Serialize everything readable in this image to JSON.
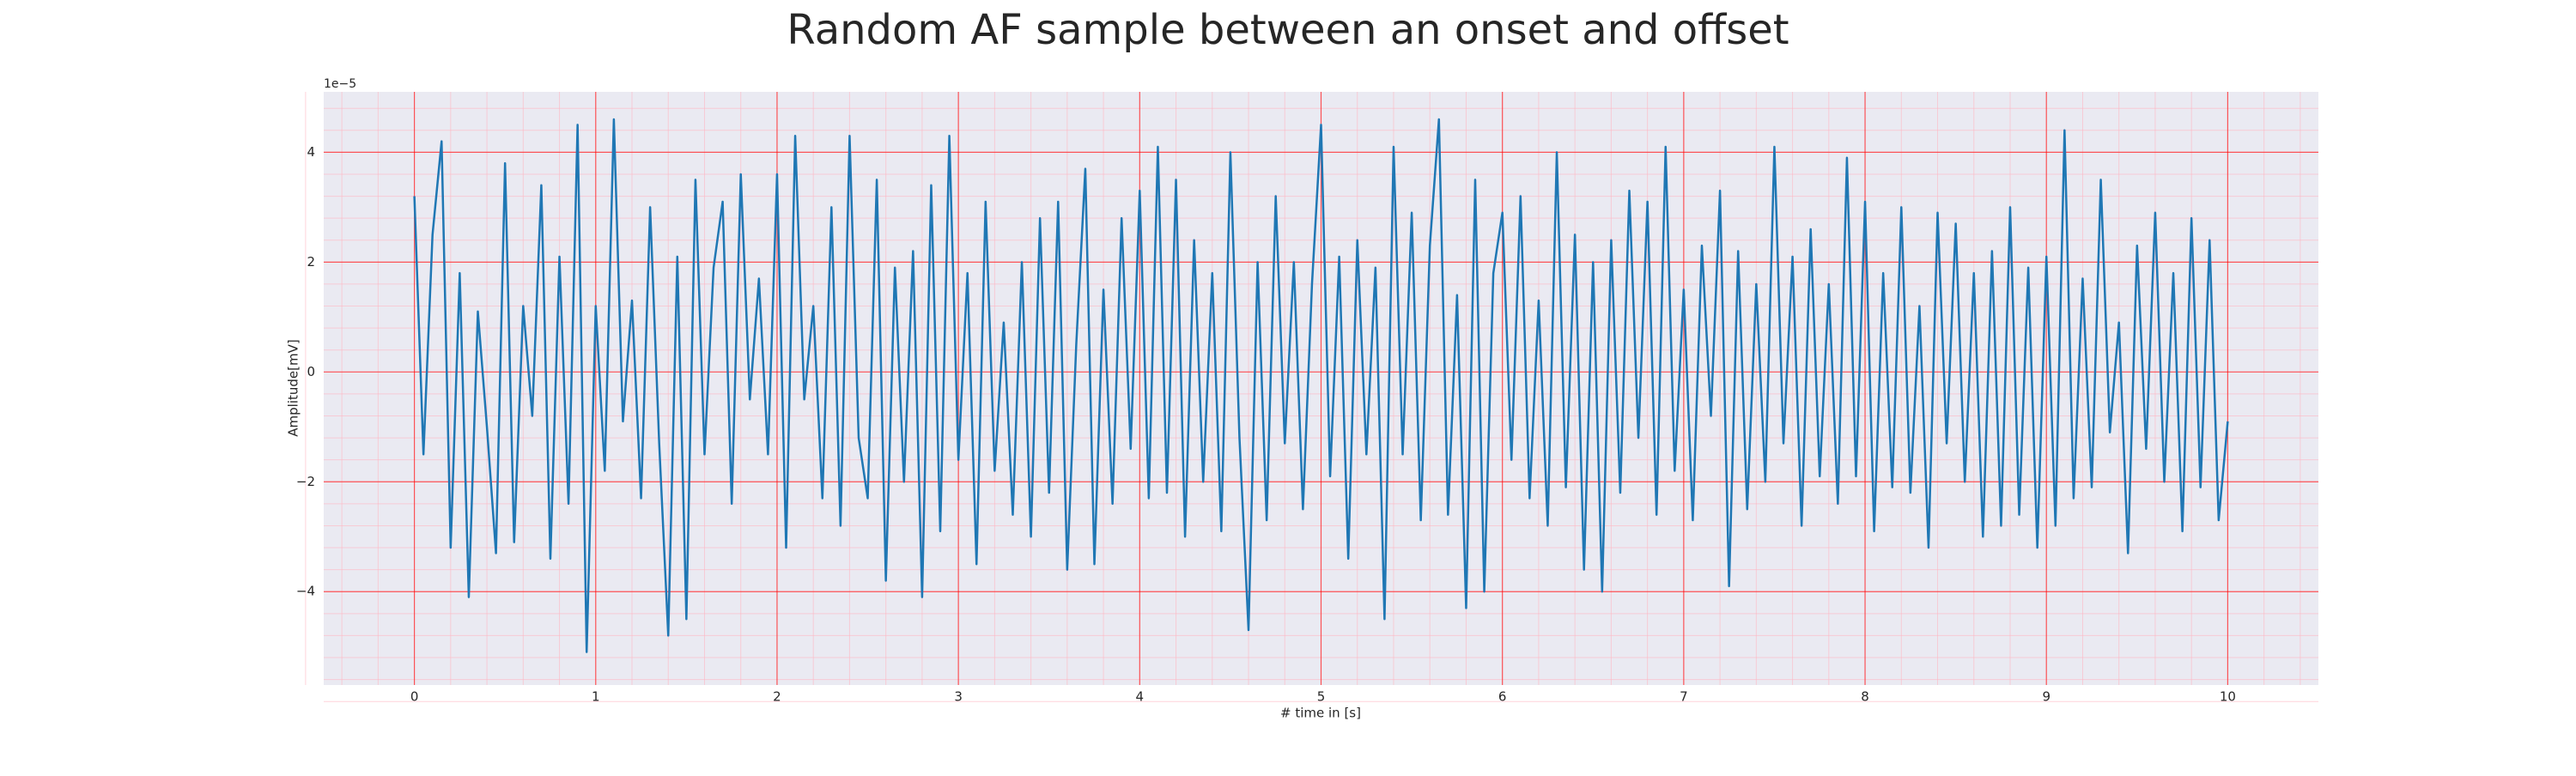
{
  "chart_data": {
    "type": "line",
    "title": "Random AF sample between an onset and offset",
    "xlabel": "# time in [s]",
    "ylabel": "Amplitude[mV]",
    "y_offset_text": "1e−5",
    "xlim": [
      -0.5,
      10.5
    ],
    "ylim": [
      -5.7,
      5.1
    ],
    "xticks": [
      0,
      1,
      2,
      3,
      4,
      5,
      6,
      7,
      8,
      9,
      10
    ],
    "yticks": [
      {
        "value": -4,
        "label": "−4"
      },
      {
        "value": -2,
        "label": "−2"
      },
      0,
      2,
      4
    ],
    "grid": true,
    "minor_grid": true,
    "grid_color": "#ff0000",
    "minor_grid_color": "#ffb6c1",
    "background": "#eaeaf2",
    "series": [
      {
        "name": "Amplitude",
        "color": "#1f77b4",
        "x": [
          0,
          0.05,
          0.1,
          0.15,
          0.2,
          0.25,
          0.3,
          0.35,
          0.4,
          0.45,
          0.5,
          0.55,
          0.6,
          0.65,
          0.7,
          0.75,
          0.8,
          0.85,
          0.9,
          0.95,
          1,
          1.05,
          1.1,
          1.15,
          1.2,
          1.25,
          1.3,
          1.35,
          1.4,
          1.45,
          1.5,
          1.55,
          1.6,
          1.65,
          1.7,
          1.75,
          1.8,
          1.85,
          1.9,
          1.95,
          2,
          2.05,
          2.1,
          2.15,
          2.2,
          2.25,
          2.3,
          2.35,
          2.4,
          2.45,
          2.5,
          2.55,
          2.6,
          2.65,
          2.7,
          2.75,
          2.8,
          2.85,
          2.9,
          2.95,
          3,
          3.05,
          3.1,
          3.15,
          3.2,
          3.25,
          3.3,
          3.35,
          3.4,
          3.45,
          3.5,
          3.55,
          3.6,
          3.65,
          3.7,
          3.75,
          3.8,
          3.85,
          3.9,
          3.95,
          4,
          4.05,
          4.1,
          4.15,
          4.2,
          4.25,
          4.3,
          4.35,
          4.4,
          4.45,
          4.5,
          4.55,
          4.6,
          4.65,
          4.7,
          4.75,
          4.8,
          4.85,
          4.9,
          4.95,
          5,
          5.05,
          5.1,
          5.15,
          5.2,
          5.25,
          5.3,
          5.35,
          5.4,
          5.45,
          5.5,
          5.55,
          5.6,
          5.65,
          5.7,
          5.75,
          5.8,
          5.85,
          5.9,
          5.95,
          6,
          6.05,
          6.1,
          6.15,
          6.2,
          6.25,
          6.3,
          6.35,
          6.4,
          6.45,
          6.5,
          6.55,
          6.6,
          6.65,
          6.7,
          6.75,
          6.8,
          6.85,
          6.9,
          6.95,
          7,
          7.05,
          7.1,
          7.15,
          7.2,
          7.25,
          7.3,
          7.35,
          7.4,
          7.45,
          7.5,
          7.55,
          7.6,
          7.65,
          7.7,
          7.75,
          7.8,
          7.85,
          7.9,
          7.95,
          8,
          8.05,
          8.1,
          8.15,
          8.2,
          8.25,
          8.3,
          8.35,
          8.4,
          8.45,
          8.5,
          8.55,
          8.6,
          8.65,
          8.7,
          8.75,
          8.8,
          8.85,
          8.9,
          8.95,
          9,
          9.05,
          9.1,
          9.15,
          9.2,
          9.25,
          9.3,
          9.35,
          9.4,
          9.45,
          9.5,
          9.55,
          9.6,
          9.65,
          9.7,
          9.75,
          9.8,
          9.85,
          9.9,
          9.95,
          10
        ],
        "values": [
          3.2,
          -1.5,
          2.5,
          4.2,
          -3.2,
          1.8,
          -4.1,
          1.1,
          -1.0,
          -3.3,
          3.8,
          -3.1,
          1.2,
          -0.8,
          3.4,
          -3.4,
          2.1,
          -2.4,
          4.5,
          -5.1,
          1.2,
          -1.8,
          4.6,
          -0.9,
          1.3,
          -2.3,
          3.0,
          -1.3,
          -4.8,
          2.1,
          -4.5,
          3.5,
          -1.5,
          1.9,
          3.1,
          -2.4,
          3.6,
          -0.5,
          1.7,
          -1.5,
          3.6,
          -3.2,
          4.3,
          -0.5,
          1.2,
          -2.3,
          3.0,
          -2.8,
          4.3,
          -1.2,
          -2.3,
          3.5,
          -3.8,
          1.9,
          -2.0,
          2.2,
          -4.1,
          3.4,
          -2.9,
          4.3,
          -1.6,
          1.8,
          -3.5,
          3.1,
          -1.8,
          0.9,
          -2.6,
          2.0,
          -3.0,
          2.8,
          -2.2,
          3.1,
          -3.6,
          0.5,
          3.7,
          -3.5,
          1.5,
          -2.4,
          2.8,
          -1.4,
          3.3,
          -2.3,
          4.1,
          -2.2,
          3.5,
          -3.0,
          2.4,
          -2.0,
          1.8,
          -2.9,
          4.0,
          -1.2,
          -4.7,
          2.0,
          -2.7,
          3.2,
          -1.3,
          2.0,
          -2.5,
          1.6,
          4.5,
          -1.9,
          2.1,
          -3.4,
          2.4,
          -1.5,
          1.9,
          -4.5,
          4.1,
          -1.5,
          2.9,
          -2.7,
          2.3,
          4.6,
          -2.6,
          1.4,
          -4.3,
          3.5,
          -4.0,
          1.8,
          2.9,
          -1.6,
          3.2,
          -2.3,
          1.3,
          -2.8,
          4.0,
          -2.1,
          2.5,
          -3.6,
          2.0,
          -4.0,
          2.4,
          -2.2,
          3.3,
          -1.2,
          3.1,
          -2.6,
          4.1,
          -1.8,
          1.5,
          -2.7,
          2.3,
          -0.8,
          3.3,
          -3.9,
          2.2,
          -2.5,
          1.6,
          -2.0,
          4.1,
          -1.3,
          2.1,
          -2.8,
          2.6,
          -1.9,
          1.6,
          -2.4,
          3.9,
          -1.9,
          3.1,
          -2.9,
          1.8,
          -2.1,
          3.0,
          -2.2,
          1.2,
          -3.2,
          2.9,
          -1.3,
          2.7,
          -2.0,
          1.8,
          -3.0,
          2.2,
          -2.8,
          3.0,
          -2.6,
          1.9,
          -3.2,
          2.1,
          -2.8,
          4.4,
          -2.3,
          1.7,
          -2.1,
          3.5,
          -1.1,
          0.9,
          -3.3,
          2.3,
          -1.4,
          2.9,
          -2.0,
          1.8,
          -2.9,
          2.8,
          -2.1,
          2.4,
          -2.7,
          -0.9
        ]
      }
    ]
  }
}
